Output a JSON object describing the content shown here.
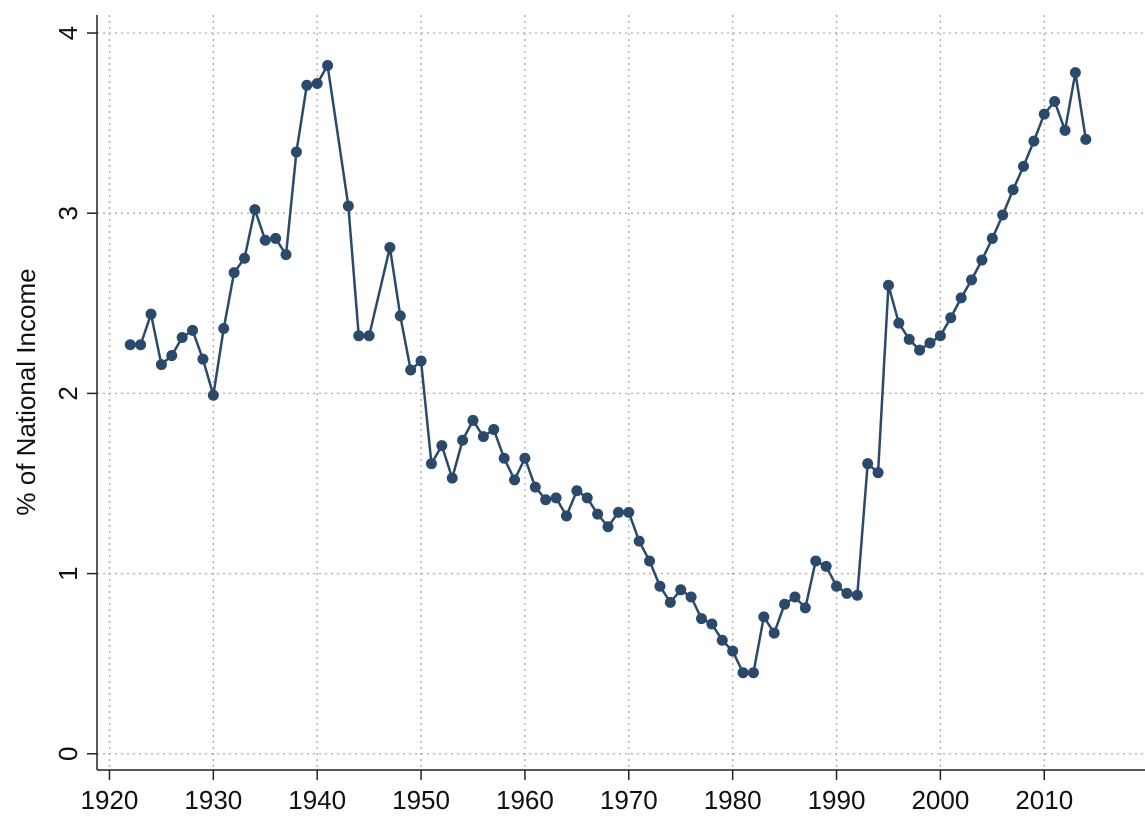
{
  "chart_data": {
    "type": "line",
    "ylabel": "% of National Income",
    "x": [
      1922,
      1923,
      1924,
      1925,
      1926,
      1927,
      1928,
      1929,
      1930,
      1931,
      1932,
      1933,
      1934,
      1935,
      1936,
      1937,
      1938,
      1939,
      1940,
      1941,
      1943,
      1944,
      1945,
      1947,
      1948,
      1949,
      1950,
      1951,
      1952,
      1953,
      1954,
      1955,
      1956,
      1957,
      1958,
      1959,
      1960,
      1961,
      1962,
      1963,
      1964,
      1965,
      1966,
      1967,
      1968,
      1969,
      1970,
      1971,
      1972,
      1973,
      1974,
      1975,
      1976,
      1977,
      1978,
      1979,
      1980,
      1981,
      1982,
      1983,
      1984,
      1985,
      1986,
      1987,
      1988,
      1989,
      1990,
      1991,
      1992,
      1993,
      1994,
      1995,
      1996,
      1997,
      1998,
      1999,
      2000,
      2001,
      2002,
      2003,
      2004,
      2005,
      2006,
      2007,
      2008,
      2009,
      2010,
      2011,
      2012,
      2013,
      2014
    ],
    "series": [
      {
        "color": "#2b4a6b",
        "values": [
          2.27,
          2.27,
          2.44,
          2.16,
          2.21,
          2.31,
          2.35,
          2.19,
          1.99,
          2.36,
          2.67,
          2.75,
          3.02,
          2.85,
          2.86,
          2.77,
          3.34,
          3.71,
          3.72,
          3.82,
          3.04,
          2.32,
          2.32,
          2.81,
          2.43,
          2.13,
          2.18,
          1.61,
          1.71,
          1.53,
          1.74,
          1.85,
          1.76,
          1.8,
          1.64,
          1.52,
          1.64,
          1.48,
          1.41,
          1.42,
          1.32,
          1.46,
          1.42,
          1.33,
          1.26,
          1.34,
          1.34,
          1.18,
          1.07,
          0.93,
          0.84,
          0.91,
          0.87,
          0.75,
          0.72,
          0.63,
          0.57,
          0.45,
          0.45,
          0.76,
          0.67,
          0.83,
          0.87,
          0.81,
          1.07,
          1.04,
          0.93,
          0.89,
          0.88,
          1.61,
          1.56,
          2.6,
          2.39,
          2.3,
          2.24,
          2.28,
          2.32,
          2.42,
          2.53,
          2.63,
          2.74,
          2.86,
          2.99,
          3.13,
          3.26,
          3.4,
          3.55,
          3.62,
          3.46,
          3.78,
          3.41
        ]
      }
    ],
    "xlim": [
      1918.8,
      2019.7
    ],
    "xticks": [
      1920,
      1930,
      1940,
      1950,
      1960,
      1970,
      1980,
      1990,
      2000,
      2010
    ],
    "ylim": [
      -0.09,
      4.1
    ],
    "yticks": [
      0,
      1,
      2,
      3,
      4
    ],
    "grid": true
  }
}
